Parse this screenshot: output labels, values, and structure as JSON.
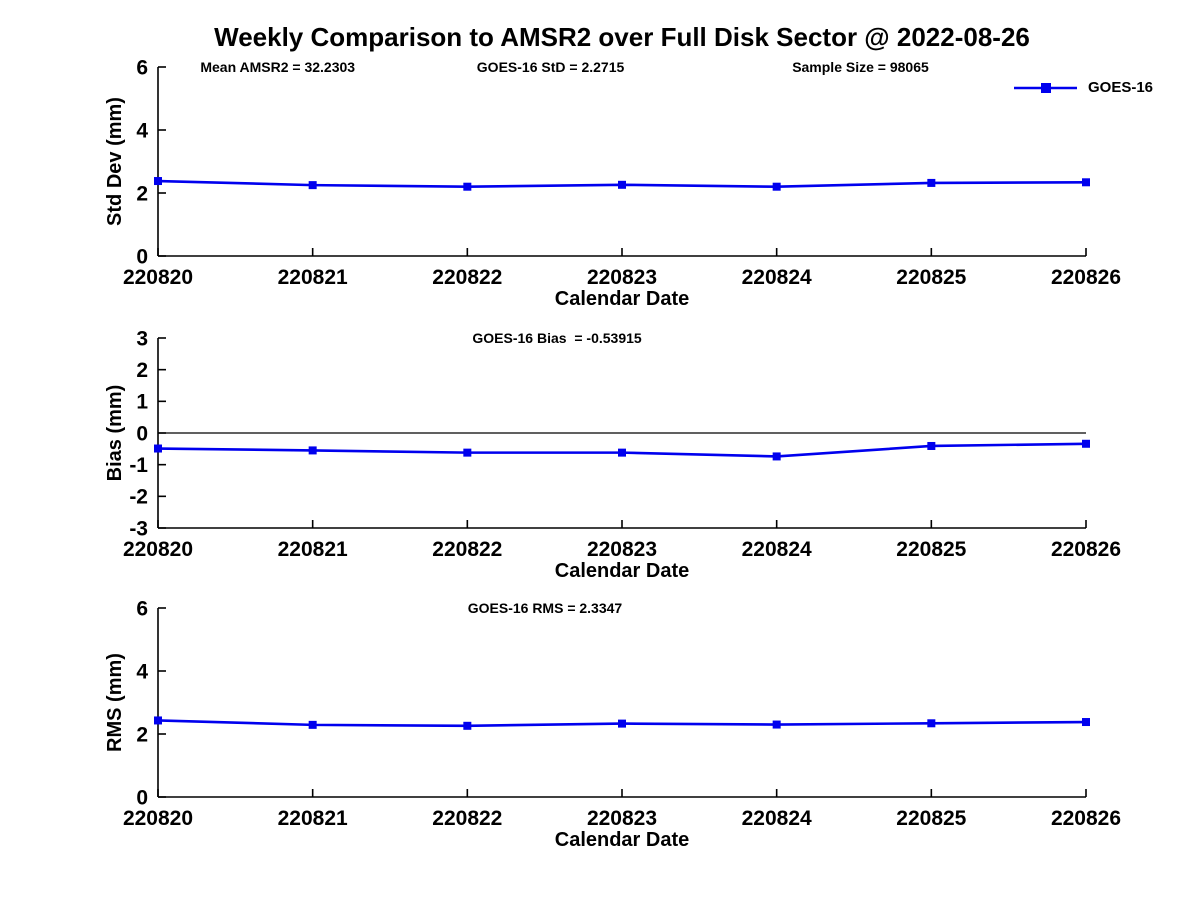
{
  "title": "Weekly Comparison to AMSR2 over Full Disk Sector @ 2022-08-26",
  "legend": {
    "label": "GOES-16",
    "color": "#0000EE"
  },
  "colors": {
    "series_blue": "#0000EE",
    "axis_black": "#000000",
    "background": "#FFFFFF"
  },
  "chart_data": [
    {
      "type": "line",
      "name": "std-dev-subplot",
      "annotations": [
        "Mean AMSR2 = 32.2303",
        "GOES-16 StD = 2.2715",
        "Sample Size = 98065"
      ],
      "categories": [
        "220820",
        "220821",
        "220822",
        "220823",
        "220824",
        "220825",
        "220826"
      ],
      "series": [
        {
          "name": "GOES-16",
          "values": [
            2.38,
            2.25,
            2.2,
            2.26,
            2.2,
            2.32,
            2.34
          ]
        }
      ],
      "xlabel": "Calendar Date",
      "ylabel": "Std Dev (mm)",
      "ylim": [
        0,
        6
      ],
      "yticks": [
        0,
        2,
        4,
        6
      ],
      "zero_line": false,
      "grid": false,
      "legend_position": "top-right-outside"
    },
    {
      "type": "line",
      "name": "bias-subplot",
      "annotations": [
        "GOES-16 Bias  = -0.53915"
      ],
      "categories": [
        "220820",
        "220821",
        "220822",
        "220823",
        "220824",
        "220825",
        "220826"
      ],
      "series": [
        {
          "name": "GOES-16",
          "values": [
            -0.49,
            -0.55,
            -0.62,
            -0.62,
            -0.74,
            -0.41,
            -0.34
          ]
        }
      ],
      "xlabel": "Calendar Date",
      "ylabel": "Bias (mm)",
      "ylim": [
        -3,
        3
      ],
      "yticks": [
        -3,
        -2,
        -1,
        0,
        1,
        2,
        3
      ],
      "zero_line": true,
      "grid": false
    },
    {
      "type": "line",
      "name": "rms-subplot",
      "annotations": [
        "GOES-16 RMS = 2.3347"
      ],
      "categories": [
        "220820",
        "220821",
        "220822",
        "220823",
        "220824",
        "220825",
        "220826"
      ],
      "series": [
        {
          "name": "GOES-16",
          "values": [
            2.43,
            2.29,
            2.26,
            2.33,
            2.3,
            2.34,
            2.38
          ]
        }
      ],
      "xlabel": "Calendar Date",
      "ylabel": "RMS (mm)",
      "ylim": [
        0,
        6
      ],
      "yticks": [
        0,
        2,
        4,
        6
      ],
      "zero_line": false,
      "grid": false
    }
  ]
}
